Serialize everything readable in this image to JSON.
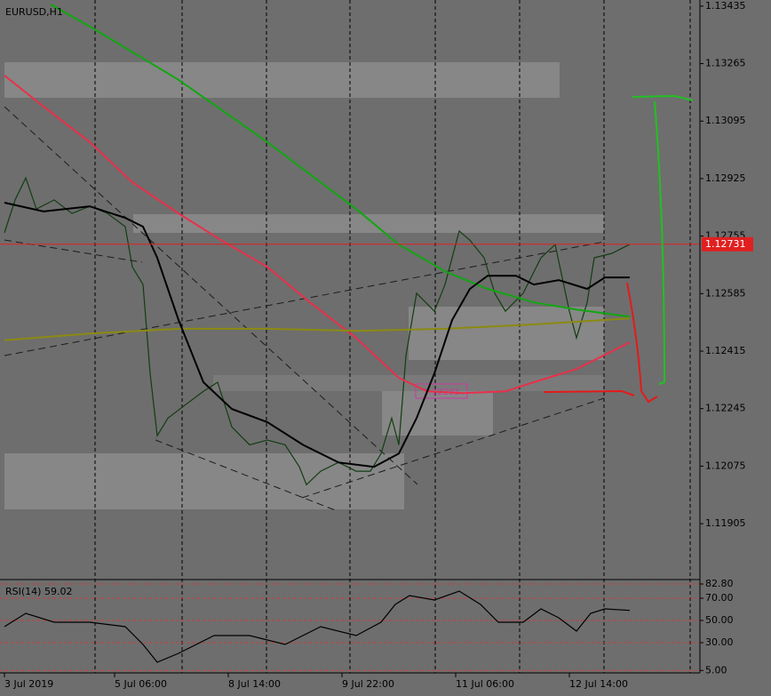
{
  "chart_data": [
    {
      "type": "line",
      "title": "EURUSD,H1",
      "xlim": [
        -1.25,
        195.75
      ],
      "xticks": [
        {
          "value": 0,
          "label": "3 Jul 2019"
        },
        {
          "value": 31,
          "label": "5 Jul 06:00"
        },
        {
          "value": 63,
          "label": "8 Jul 14:00"
        },
        {
          "value": 95,
          "label": "9 Jul 22:00"
        },
        {
          "value": 127,
          "label": "11 Jul 06:00"
        },
        {
          "value": 159,
          "label": "12 Jul 14:00"
        }
      ],
      "ylim": [
        1.11745,
        1.13453
      ],
      "yticks": [
        1.13435,
        1.13265,
        1.13095,
        1.12925,
        1.12755,
        1.12585,
        1.12415,
        1.12245,
        1.12075,
        1.11905
      ],
      "grid": false,
      "current_price": 1.12731,
      "annotation": "1.12293",
      "series": [
        {
          "color": "#123d12",
          "x": [
            0,
            3,
            6,
            9,
            14,
            19,
            24,
            29,
            34,
            36,
            39,
            41,
            43,
            46,
            51,
            56,
            60,
            64,
            69,
            74,
            79,
            83,
            85,
            89,
            94,
            99,
            103,
            106,
            109,
            111,
            113,
            116,
            121,
            124,
            128,
            131,
            135,
            138,
            141,
            146,
            151,
            155,
            159,
            161,
            164,
            166,
            171,
            176
          ],
          "values": [
            1.12765,
            1.12862,
            1.12927,
            1.12835,
            1.12862,
            1.12822,
            1.12843,
            1.12822,
            1.12783,
            1.12664,
            1.12612,
            1.12349,
            1.12165,
            1.12217,
            1.12257,
            1.12296,
            1.12323,
            1.12191,
            1.12138,
            1.12152,
            1.12138,
            1.12073,
            1.1202,
            1.1206,
            1.12086,
            1.1206,
            1.1206,
            1.12112,
            1.12217,
            1.12138,
            1.12401,
            1.12586,
            1.12533,
            1.12612,
            1.1277,
            1.12743,
            1.12691,
            1.12586,
            1.12533,
            1.12586,
            1.12691,
            1.1273,
            1.12533,
            1.12454,
            1.12559,
            1.12691,
            1.12704,
            1.12731
          ]
        },
        {
          "color": "#11a611",
          "x": [
            13,
            24,
            49,
            74,
            99,
            111,
            124,
            136,
            149,
            161,
            176
          ],
          "values": [
            1.1344,
            1.13375,
            1.13217,
            1.13033,
            1.12835,
            1.1273,
            1.12651,
            1.12599,
            1.12559,
            1.12538,
            1.12517
          ]
        },
        {
          "color": "#e8304a",
          "x": [
            0,
            11,
            24,
            36,
            49,
            61,
            74,
            86,
            99,
            111,
            119,
            129,
            141,
            149,
            161,
            176
          ],
          "values": [
            1.1323,
            1.13138,
            1.13033,
            1.12914,
            1.12822,
            1.12743,
            1.12664,
            1.12559,
            1.12454,
            1.12336,
            1.12296,
            1.12291,
            1.12296,
            1.12323,
            1.12362,
            1.12441
          ]
        },
        {
          "color": "#8c8a10",
          "x": [
            0,
            24,
            49,
            74,
            99,
            124,
            149,
            176
          ],
          "values": [
            1.12447,
            1.12467,
            1.12481,
            1.12481,
            1.12475,
            1.12481,
            1.12494,
            1.12512
          ]
        },
        {
          "color": "#000000",
          "x": [
            0,
            11,
            24,
            34,
            39,
            43,
            49,
            56,
            64,
            74,
            84,
            94,
            104,
            111,
            116,
            121,
            126,
            131,
            136,
            144,
            149,
            156,
            164,
            169,
            176
          ],
          "values": [
            1.12854,
            1.12828,
            1.12843,
            1.12809,
            1.12783,
            1.12691,
            1.12507,
            1.12323,
            1.12244,
            1.12205,
            1.12138,
            1.12086,
            1.12073,
            1.12112,
            1.12217,
            1.12349,
            1.12507,
            1.12599,
            1.12638,
            1.12638,
            1.12612,
            1.12625,
            1.12599,
            1.12633,
            1.12633
          ]
        }
      ]
    },
    {
      "type": "line",
      "title": "RSI(14) 59.02",
      "xlim": [
        -1.25,
        195.75
      ],
      "ylim": [
        2.8,
        84.4
      ],
      "yticks": [
        {
          "value": 82.8,
          "label": "82.80"
        },
        {
          "value": 70,
          "label": "70.00"
        },
        {
          "value": 50,
          "label": "50.00"
        },
        {
          "value": 30,
          "label": "30.00"
        },
        {
          "value": 5,
          "label": "5.00"
        }
      ],
      "grid": true,
      "grid_color": "#d43a3a",
      "series": [
        {
          "color": "#000000",
          "x": [
            0,
            6,
            14,
            24,
            34,
            39,
            43,
            49,
            59,
            69,
            79,
            89,
            99,
            106,
            110,
            114,
            121,
            128,
            134,
            139,
            146,
            151,
            156,
            161,
            165,
            169,
            176
          ],
          "values": [
            44.4,
            56.4,
            48.4,
            48.4,
            44.4,
            28.4,
            12.4,
            20.4,
            36.4,
            36.4,
            28.4,
            44.4,
            36.4,
            48.4,
            64.4,
            72.4,
            68.4,
            76.4,
            64.4,
            48.4,
            48.4,
            60.4,
            52.4,
            40.4,
            56.4,
            60.4,
            59.02
          ]
        }
      ]
    }
  ]
}
